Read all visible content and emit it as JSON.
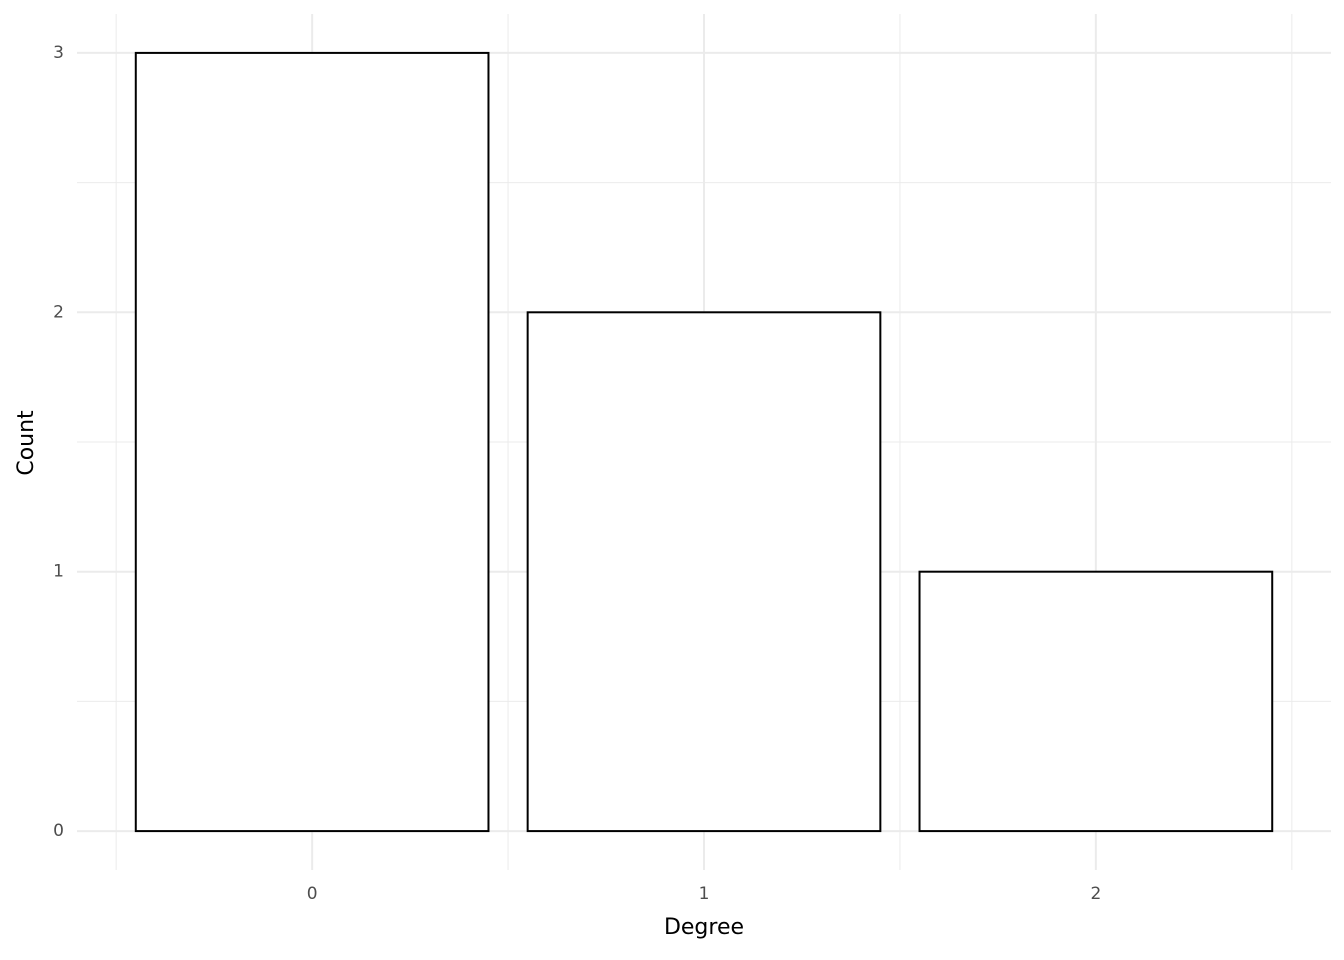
{
  "chart_data": {
    "type": "bar",
    "x_label": "Degree",
    "y_label": "Count",
    "categories": [
      "0",
      "1",
      "2"
    ],
    "values": [
      3,
      2,
      1
    ],
    "fill": "#ffffff",
    "color": "#000000",
    "ylim": [
      -0.15,
      3.15
    ],
    "yticks": [
      0,
      1,
      2,
      3
    ],
    "grid": true
  }
}
